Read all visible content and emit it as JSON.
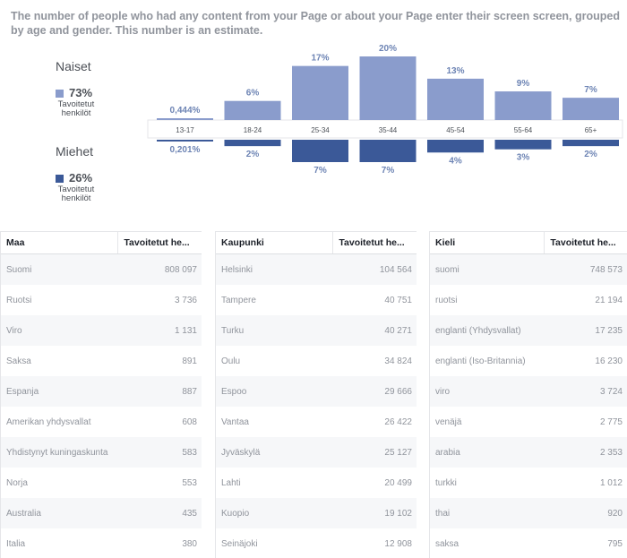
{
  "description": "The number of people who had any content from your Page or about your Page enter their screen screen, grouped by age and gender. This number is an estimate.",
  "legend": {
    "women": {
      "title": "Naiset",
      "percent": "73%",
      "sub1": "Tavoitetut",
      "sub2": "henkilöt",
      "color": "#8a9ccc"
    },
    "men": {
      "title": "Miehet",
      "percent": "26%",
      "sub1": "Tavoitetut",
      "sub2": "henkilöt",
      "color": "#3b5998"
    }
  },
  "chart_data": {
    "type": "bar",
    "categories": [
      "13-17",
      "18-24",
      "25-34",
      "35-44",
      "45-54",
      "55-64",
      "65+"
    ],
    "series": [
      {
        "name": "Naiset",
        "values": [
          0.444,
          6,
          17,
          20,
          13,
          9,
          7
        ],
        "labels": [
          "0,444%",
          "6%",
          "17%",
          "20%",
          "13%",
          "9%",
          "7%"
        ]
      },
      {
        "name": "Miehet",
        "values": [
          0.201,
          2,
          7,
          7,
          4,
          3,
          2
        ],
        "labels": [
          "0,201%",
          "2%",
          "7%",
          "7%",
          "4%",
          "3%",
          "2%"
        ]
      }
    ],
    "colors": {
      "women": "#8a9ccc",
      "men": "#3b5998",
      "label": "#6d84b4"
    }
  },
  "tables": [
    {
      "headers": [
        "Maa",
        "Tavoitetut he..."
      ],
      "rows": [
        [
          "Suomi",
          "808 097"
        ],
        [
          "Ruotsi",
          "3 736"
        ],
        [
          "Viro",
          "1 131"
        ],
        [
          "Saksa",
          "891"
        ],
        [
          "Espanja",
          "887"
        ],
        [
          "Amerikan yhdysvallat",
          "608"
        ],
        [
          "Yhdistynyt kuningaskunta",
          "583"
        ],
        [
          "Norja",
          "553"
        ],
        [
          "Australia",
          "435"
        ],
        [
          "Italia",
          "380"
        ]
      ]
    },
    {
      "headers": [
        "Kaupunki",
        "Tavoitetut he..."
      ],
      "rows": [
        [
          "Helsinki",
          "104 564"
        ],
        [
          "Tampere",
          "40 751"
        ],
        [
          "Turku",
          "40 271"
        ],
        [
          "Oulu",
          "34 824"
        ],
        [
          "Espoo",
          "29 666"
        ],
        [
          "Vantaa",
          "26 422"
        ],
        [
          "Jyväskylä",
          "25 127"
        ],
        [
          "Lahti",
          "20 499"
        ],
        [
          "Kuopio",
          "19 102"
        ],
        [
          "Seinäjoki",
          "12 908"
        ]
      ]
    },
    {
      "headers": [
        "Kieli",
        "Tavoitetut he..."
      ],
      "rows": [
        [
          "suomi",
          "748 573"
        ],
        [
          "ruotsi",
          "21 194"
        ],
        [
          "englanti (Yhdysvallat)",
          "17 235"
        ],
        [
          "englanti (Iso-Britannia)",
          "16 230"
        ],
        [
          "viro",
          "3 724"
        ],
        [
          "venäjä",
          "2 775"
        ],
        [
          "arabia",
          "2 353"
        ],
        [
          "turkki",
          "1 012"
        ],
        [
          "thai",
          "920"
        ],
        [
          "saksa",
          "795"
        ]
      ]
    }
  ]
}
